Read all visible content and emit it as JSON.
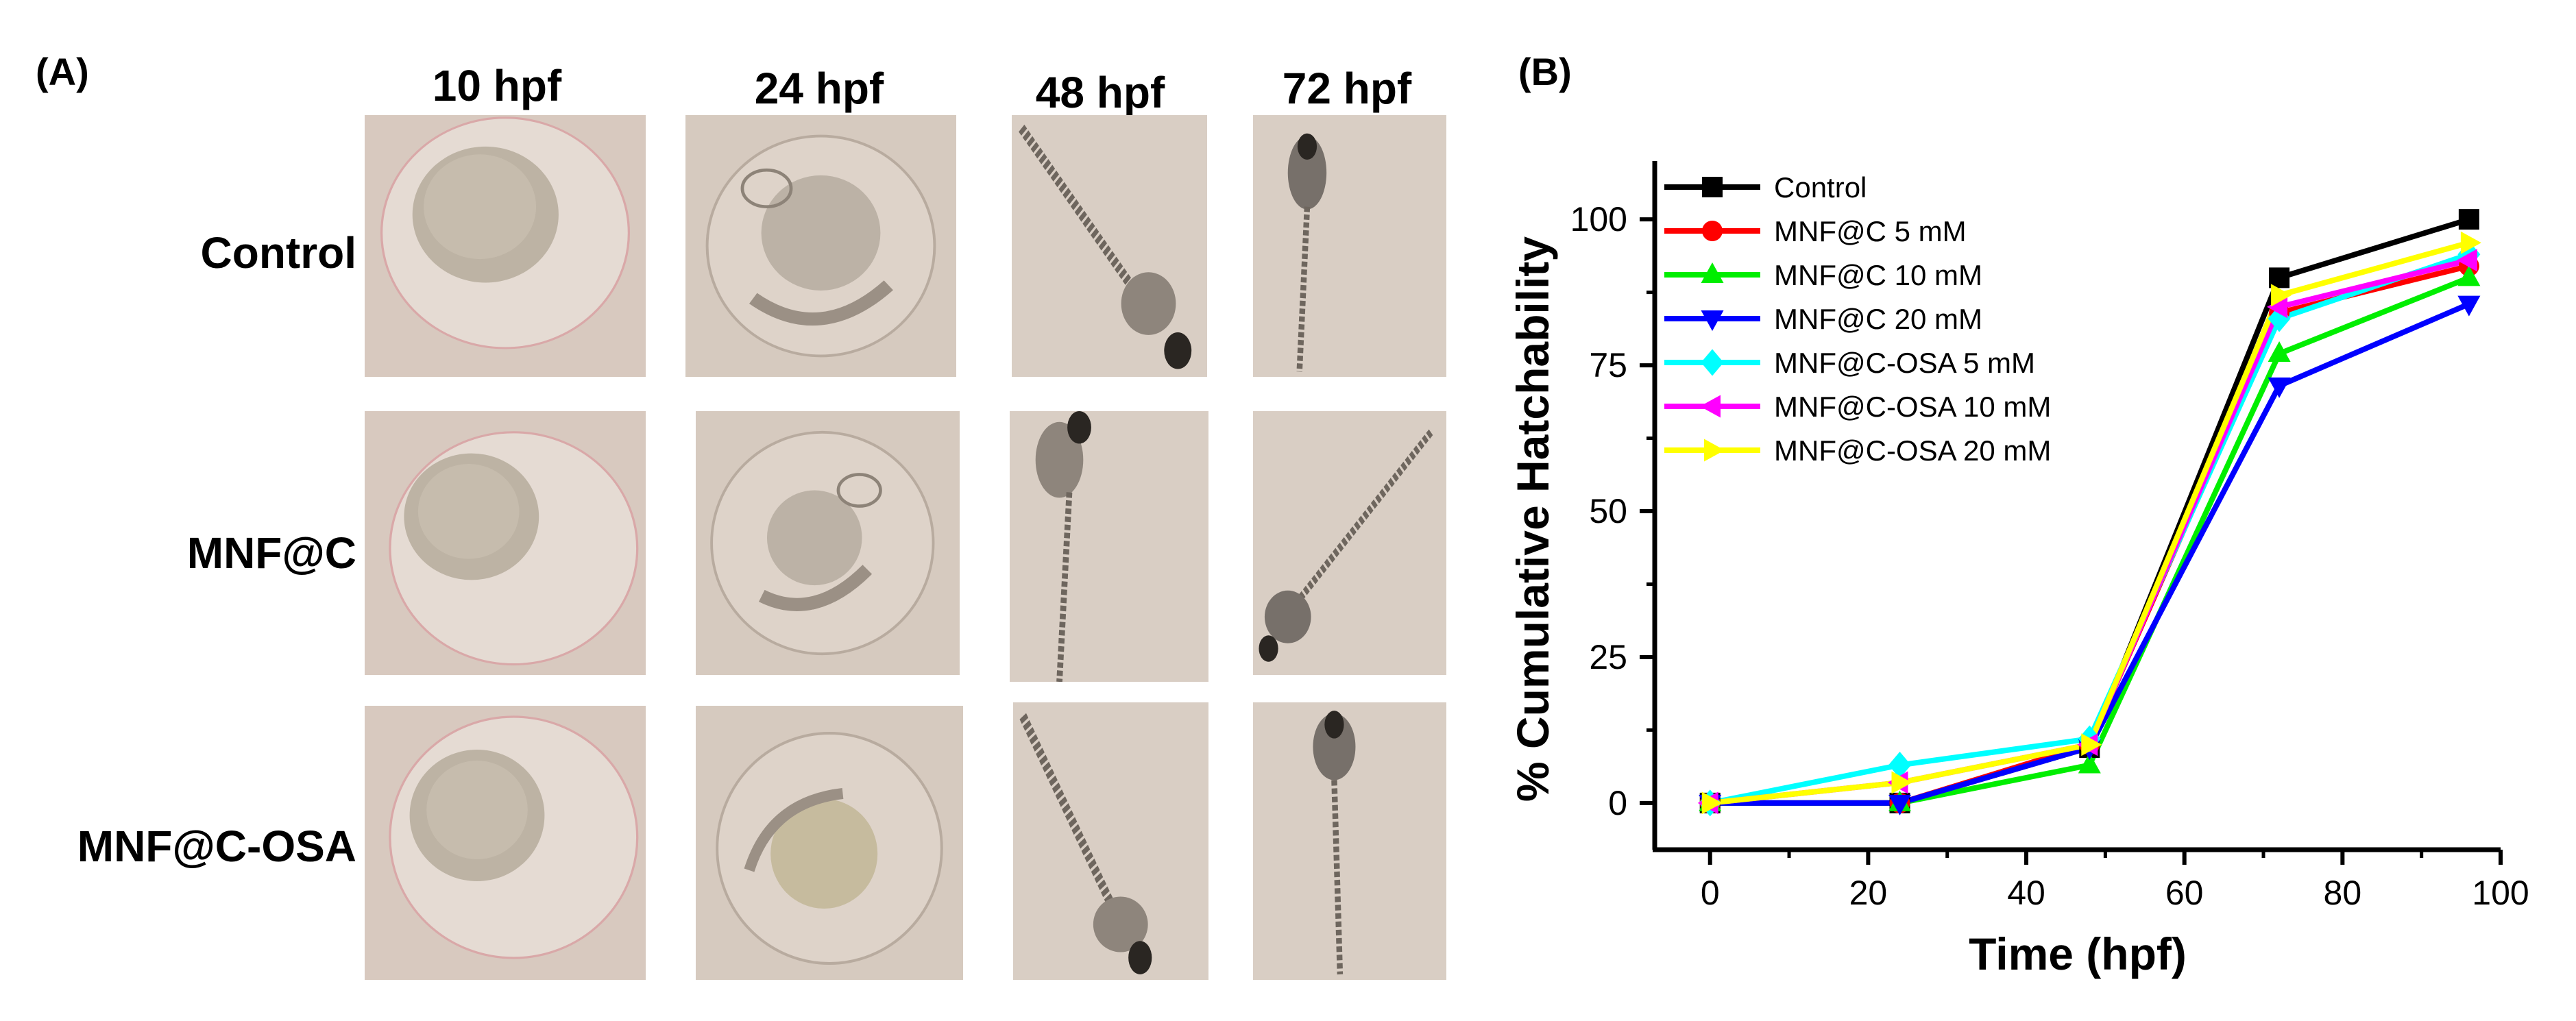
{
  "panel_a": {
    "label": "(A)",
    "columns": [
      "10 hpf",
      "24 hpf",
      "48 hpf",
      "72 hpf"
    ],
    "rows": [
      "Control",
      "MNF@C",
      "MNF@C-OSA"
    ]
  },
  "panel_b": {
    "label": "(B)"
  },
  "chart_data": {
    "type": "line",
    "title": "",
    "xlabel": "Time (hpf)",
    "ylabel": "% Cumulative Hatchability",
    "xlim": [
      -7,
      100
    ],
    "ylim": [
      -8,
      110
    ],
    "xticks": [
      0,
      20,
      40,
      60,
      80,
      100
    ],
    "yticks": [
      0,
      25,
      50,
      75,
      100
    ],
    "legend_position": "top-left",
    "x": [
      0,
      24,
      48,
      72,
      96
    ],
    "series": [
      {
        "name": "Control",
        "color": "#000000",
        "marker": "square",
        "values": [
          0,
          0,
          9.5,
          90,
          100
        ]
      },
      {
        "name": "MNF@C 5 mM",
        "color": "#ff0000",
        "marker": "circle",
        "values": [
          0,
          0,
          10,
          84,
          92
        ]
      },
      {
        "name": "MNF@C 10 mM",
        "color": "#00ee00",
        "marker": "triangle-up",
        "values": [
          0,
          0,
          6.5,
          77,
          90
        ]
      },
      {
        "name": "MNF@C 20 mM",
        "color": "#0000ff",
        "marker": "triangle-down",
        "values": [
          0,
          0,
          9.5,
          71.5,
          85.5
        ]
      },
      {
        "name": "MNF@C-OSA 5 mM",
        "color": "#00ffff",
        "marker": "diamond",
        "values": [
          0,
          6.5,
          11,
          83,
          94
        ]
      },
      {
        "name": "MNF@C-OSA 10 mM",
        "color": "#ff00ff",
        "marker": "triangle-left",
        "values": [
          0,
          3.5,
          10,
          85,
          93
        ]
      },
      {
        "name": "MNF@C-OSA 20 mM",
        "color": "#ffff00",
        "marker": "triangle-right",
        "values": [
          0,
          3.5,
          10,
          87,
          96
        ]
      }
    ]
  }
}
